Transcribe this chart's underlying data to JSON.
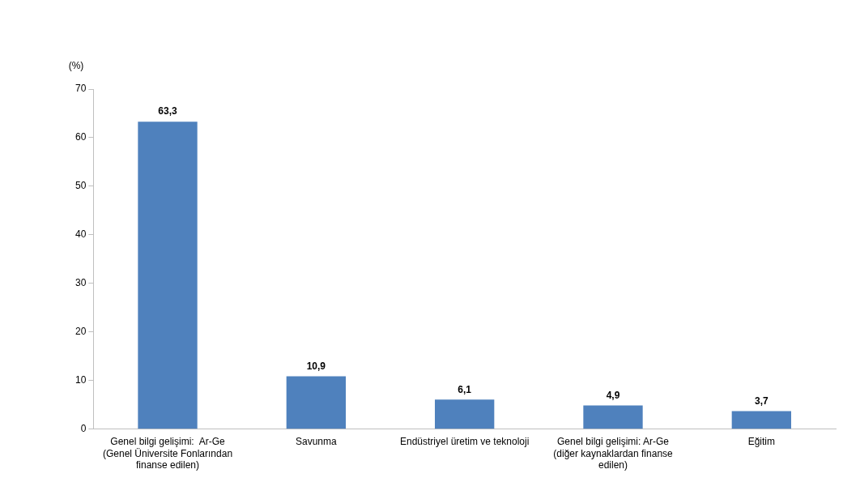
{
  "chart_data": {
    "type": "bar",
    "ylabel": "(%)",
    "categories": [
      "Genel bilgi gelişimi:  Ar-Ge\n(Genel Üniversite Fonlarından\nfinanse edilen)",
      "Savunma",
      "Endüstriyel üretim ve teknoloji",
      "Genel bilgi gelişimi: Ar-Ge\n(diğer kaynaklardan finanse\nedilen)",
      "Eğitim"
    ],
    "values": [
      63.3,
      10.9,
      6.1,
      4.9,
      3.7
    ],
    "value_labels": [
      "63,3",
      "10,9",
      "6,1",
      "4,9",
      "3,7"
    ],
    "color": "#4f81bd",
    "ylim": [
      0,
      70
    ],
    "yticks": [
      0,
      10,
      20,
      30,
      40,
      50,
      60,
      70
    ],
    "grid": false
  }
}
